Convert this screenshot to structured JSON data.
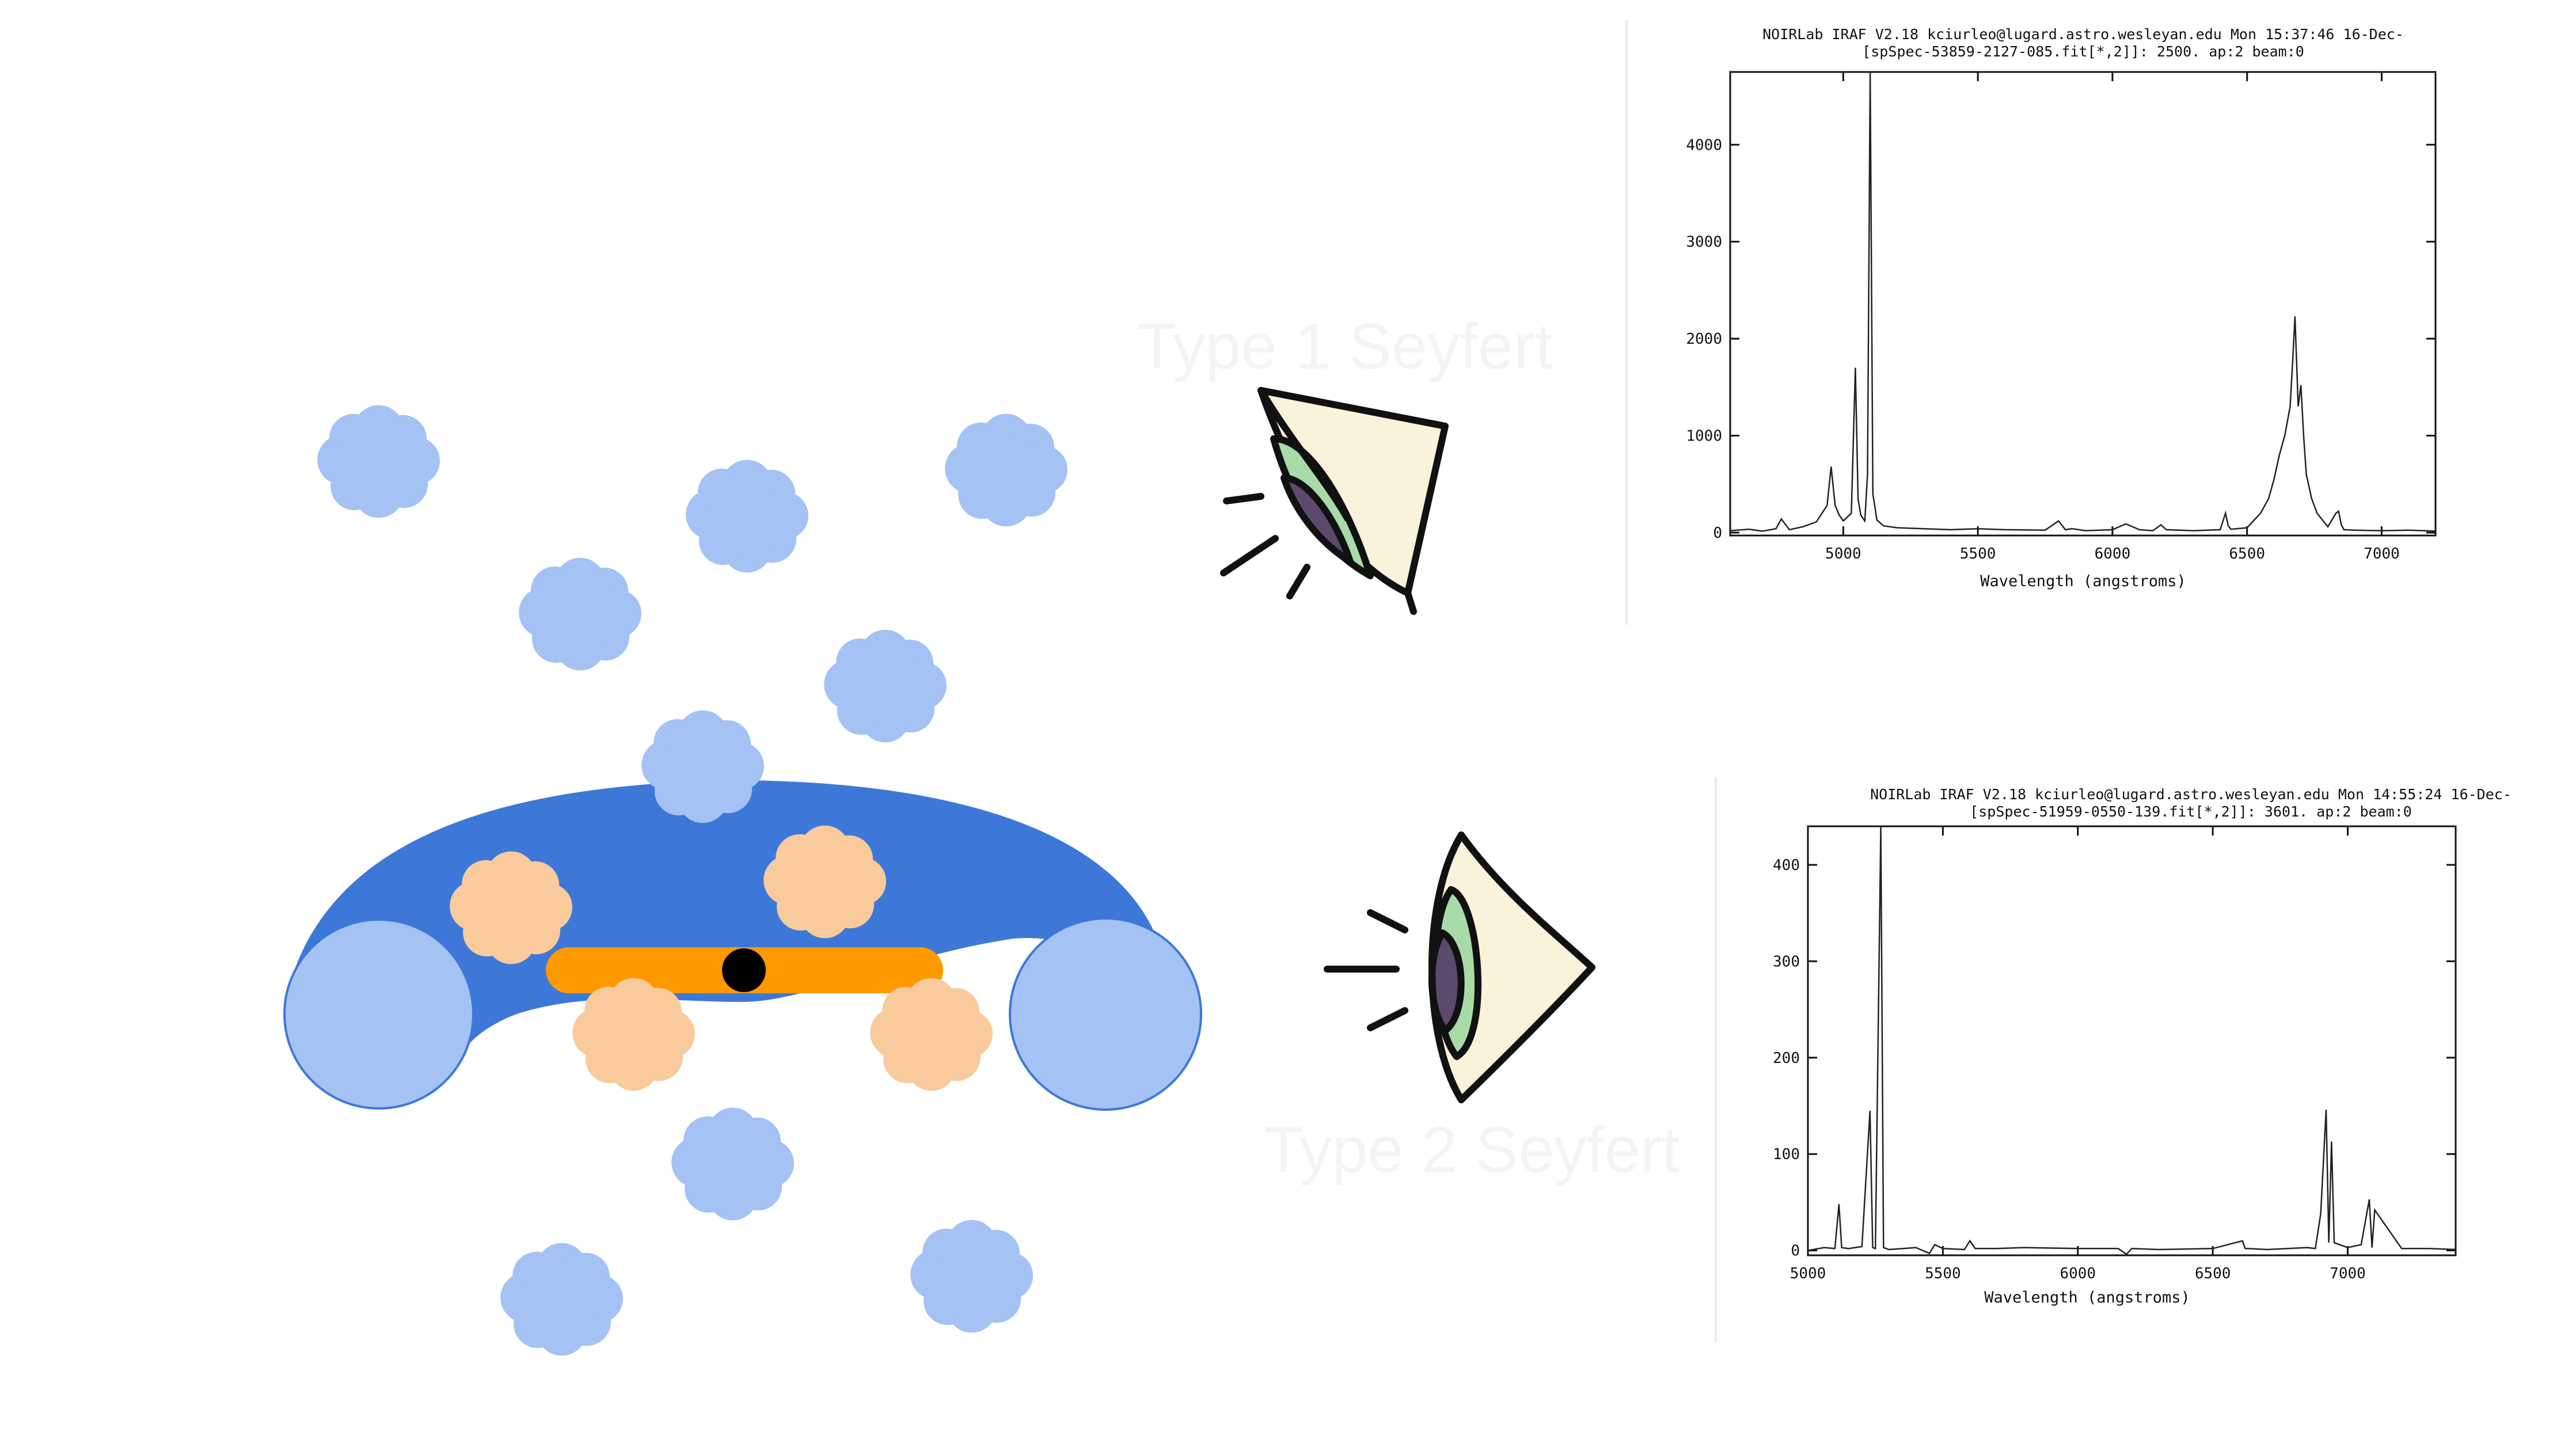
{
  "labels": {
    "type1": "Type 1 Seyfert",
    "type2": "Type 2 Seyfert"
  },
  "colors": {
    "torus": "#3d78d8",
    "torus_end": "#a4c2f4",
    "cloud_blue": "#a4c2f4",
    "cloud_orange": "#f9cb9c",
    "disk": "#ff9900",
    "black_hole": "#000000",
    "eye_white": "#faf3dc",
    "iris": "#a8dba8",
    "pupil": "#5b4a6b",
    "faint_label": "#f4f4f4"
  },
  "icons": [
    "cloud-icon",
    "eye-icon"
  ],
  "chart_data": [
    {
      "type": "line",
      "title": "NOIRLab IRAF V2.18 kciurleo@lugard.astro.wesleyan.edu Mon 15:37:46 16-Dec-",
      "subtitle": "[spSpec-53859-2127-085.fit[*,2]]:  2500. ap:2 beam:0",
      "xlabel": "Wavelength (angstroms)",
      "ylabel": "",
      "xlim": [
        4580,
        7200
      ],
      "ylim": [
        -30,
        4750
      ],
      "xticks": [
        5000,
        5500,
        6000,
        6500,
        7000
      ],
      "yticks": [
        0,
        1000,
        2000,
        3000,
        4000
      ],
      "x": [
        4580,
        4650,
        4700,
        4750,
        4770,
        4800,
        4850,
        4900,
        4940,
        4955,
        4970,
        4985,
        5000,
        5030,
        5045,
        5055,
        5065,
        5080,
        5090,
        5100,
        5110,
        5125,
        5150,
        5200,
        5300,
        5400,
        5500,
        5600,
        5750,
        5800,
        5825,
        5850,
        5900,
        6000,
        6050,
        6100,
        6150,
        6180,
        6200,
        6250,
        6300,
        6400,
        6420,
        6430,
        6440,
        6500,
        6550,
        6580,
        6600,
        6620,
        6640,
        6660,
        6670,
        6678,
        6690,
        6700,
        6710,
        6720,
        6740,
        6760,
        6800,
        6830,
        6840,
        6850,
        6860,
        6900,
        7000,
        7100,
        7200
      ],
      "y": [
        20,
        35,
        15,
        40,
        140,
        30,
        60,
        110,
        280,
        680,
        280,
        180,
        120,
        200,
        1700,
        350,
        180,
        120,
        600,
        4800,
        400,
        130,
        70,
        50,
        40,
        30,
        40,
        30,
        25,
        120,
        30,
        40,
        20,
        30,
        90,
        30,
        20,
        80,
        30,
        25,
        20,
        30,
        200,
        70,
        35,
        50,
        200,
        350,
        550,
        800,
        1000,
        1300,
        1800,
        2230,
        1300,
        1520,
        1000,
        600,
        350,
        200,
        60,
        200,
        220,
        80,
        30,
        25,
        20,
        25,
        15
      ]
    },
    {
      "type": "line",
      "title": "NOIRLab IRAF V2.18 kciurleo@lugard.astro.wesleyan.edu Mon 14:55:24 16-Dec-",
      "subtitle": "[spSpec-51959-0550-139.fit[*,2]]:  3601. ap:2 beam:0",
      "xlabel": "Wavelength (angstroms)",
      "ylabel": "",
      "xlim": [
        5000,
        7400
      ],
      "ylim": [
        -5,
        440
      ],
      "xticks": [
        5000,
        5500,
        6000,
        6500,
        7000
      ],
      "yticks": [
        0,
        100,
        200,
        300,
        400
      ],
      "x": [
        5000,
        5060,
        5100,
        5115,
        5125,
        5150,
        5200,
        5230,
        5240,
        5250,
        5270,
        5280,
        5290,
        5300,
        5400,
        5450,
        5470,
        5500,
        5580,
        5600,
        5620,
        5700,
        5800,
        6000,
        6150,
        6180,
        6200,
        6300,
        6500,
        6610,
        6620,
        6630,
        6700,
        6850,
        6880,
        6900,
        6920,
        6930,
        6940,
        6950,
        7000,
        7050,
        7080,
        7090,
        7100,
        7200,
        7300,
        7400
      ],
      "y": [
        0,
        3,
        2,
        48,
        3,
        2,
        4,
        145,
        3,
        2,
        450,
        3,
        2,
        1,
        3,
        -3,
        6,
        2,
        1,
        10,
        2,
        2,
        3,
        2,
        2,
        -4,
        2,
        1,
        2,
        10,
        2,
        2,
        1,
        3,
        2,
        38,
        146,
        8,
        113,
        8,
        3,
        6,
        53,
        3,
        42,
        2,
        2,
        1
      ]
    }
  ]
}
